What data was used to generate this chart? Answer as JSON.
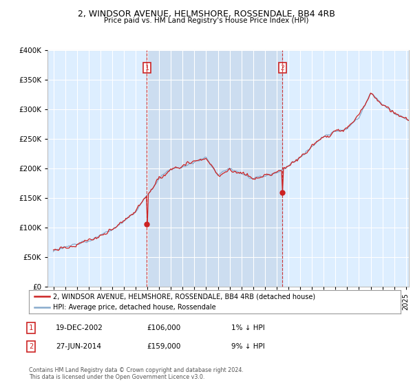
{
  "title1": "2, WINDSOR AVENUE, HELMSHORE, ROSSENDALE, BB4 4RB",
  "title2": "Price paid vs. HM Land Registry's House Price Index (HPI)",
  "legend_label1": "2, WINDSOR AVENUE, HELMSHORE, ROSSENDALE, BB4 4RB (detached house)",
  "legend_label2": "HPI: Average price, detached house, Rossendale",
  "transaction1_date": "19-DEC-2002",
  "transaction1_price": "£106,000",
  "transaction1_hpi": "1% ↓ HPI",
  "transaction2_date": "27-JUN-2014",
  "transaction2_price": "£159,000",
  "transaction2_hpi": "9% ↓ HPI",
  "footnote": "Contains HM Land Registry data © Crown copyright and database right 2024.\nThis data is licensed under the Open Government Licence v3.0.",
  "line1_color": "#cc2222",
  "line2_color": "#88aacc",
  "vline_color": "#cc2222",
  "shade_color": "#ccddf0",
  "plot_bg_color": "#ddeeff",
  "ylim": [
    0,
    400000
  ],
  "yticks": [
    0,
    50000,
    100000,
    150000,
    200000,
    250000,
    300000,
    350000,
    400000
  ],
  "ytick_labels": [
    "£0",
    "£50K",
    "£100K",
    "£150K",
    "£200K",
    "£250K",
    "£300K",
    "£350K",
    "£400K"
  ],
  "transaction1_x": 2002.96,
  "transaction1_y": 106000,
  "transaction2_x": 2014.49,
  "transaction2_y": 159000,
  "xmin": 1995.0,
  "xmax": 2025.25
}
